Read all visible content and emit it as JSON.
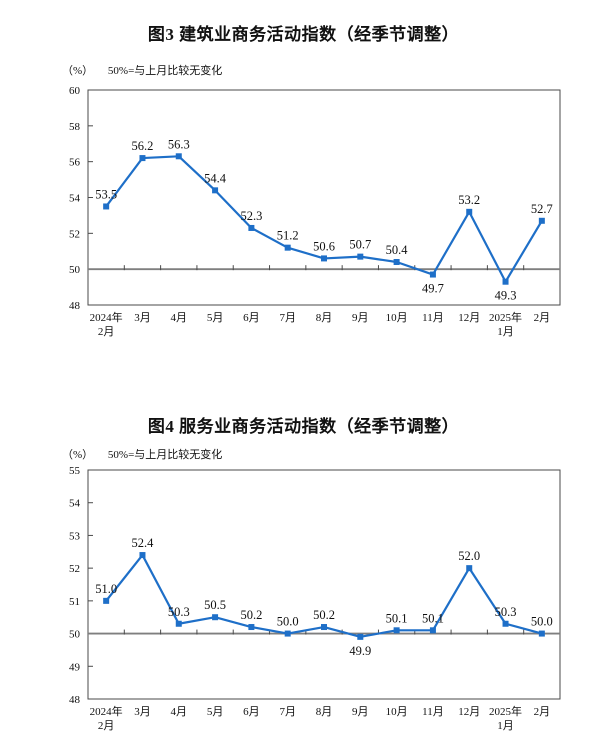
{
  "page": {
    "background_color": "#ffffff",
    "text_color": "#111111"
  },
  "chart_data": [
    {
      "type": "line",
      "title": "图3 建筑业商务活动指数（经季节调整）",
      "unit_label": "（%）",
      "note": "50%=与上月比较无变化",
      "categories": [
        "2024年\n2月",
        "3月",
        "4月",
        "5月",
        "6月",
        "7月",
        "8月",
        "9月",
        "10月",
        "11月",
        "12月",
        "2025年\n1月",
        "2月"
      ],
      "values": [
        53.5,
        56.2,
        56.3,
        54.4,
        52.3,
        51.2,
        50.6,
        50.7,
        50.4,
        49.7,
        53.2,
        49.3,
        52.7
      ],
      "value_labels": [
        "53.5",
        "56.2",
        "56.3",
        "54.4",
        "52.3",
        "51.2",
        "50.6",
        "50.7",
        "50.4",
        "49.7",
        "53.2",
        "49.3",
        "52.7"
      ],
      "label_positions": [
        "above",
        "above",
        "above",
        "above",
        "above",
        "above",
        "above",
        "above",
        "above",
        "below",
        "above",
        "below",
        "above"
      ],
      "ylim": [
        48,
        60
      ],
      "ytick_step": 2,
      "baseline": 50,
      "grid": false,
      "legend": "none",
      "line_color": "#1E6FC8",
      "marker": "square",
      "axis_color": "#4a4a4a",
      "baseline_color": "#7f7f7f"
    },
    {
      "type": "line",
      "title": "图4 服务业商务活动指数（经季节调整）",
      "unit_label": "（%）",
      "note": "50%=与上月比较无变化",
      "categories": [
        "2024年\n2月",
        "3月",
        "4月",
        "5月",
        "6月",
        "7月",
        "8月",
        "9月",
        "10月",
        "11月",
        "12月",
        "2025年\n1月",
        "2月"
      ],
      "values": [
        51.0,
        52.4,
        50.3,
        50.5,
        50.2,
        50.0,
        50.2,
        49.9,
        50.1,
        50.1,
        52.0,
        50.3,
        50.0
      ],
      "value_labels": [
        "51.0",
        "52.4",
        "50.3",
        "50.5",
        "50.2",
        "50.0",
        "50.2",
        "49.9",
        "50.1",
        "50.1",
        "52.0",
        "50.3",
        "50.0"
      ],
      "label_positions": [
        "above",
        "above",
        "above",
        "above",
        "above",
        "above",
        "above",
        "below",
        "above",
        "above",
        "above",
        "above",
        "above"
      ],
      "ylim": [
        48,
        55
      ],
      "ytick_step": 1,
      "baseline": 50,
      "grid": false,
      "legend": "none",
      "line_color": "#1E6FC8",
      "marker": "square",
      "axis_color": "#4a4a4a",
      "baseline_color": "#7f7f7f"
    }
  ]
}
